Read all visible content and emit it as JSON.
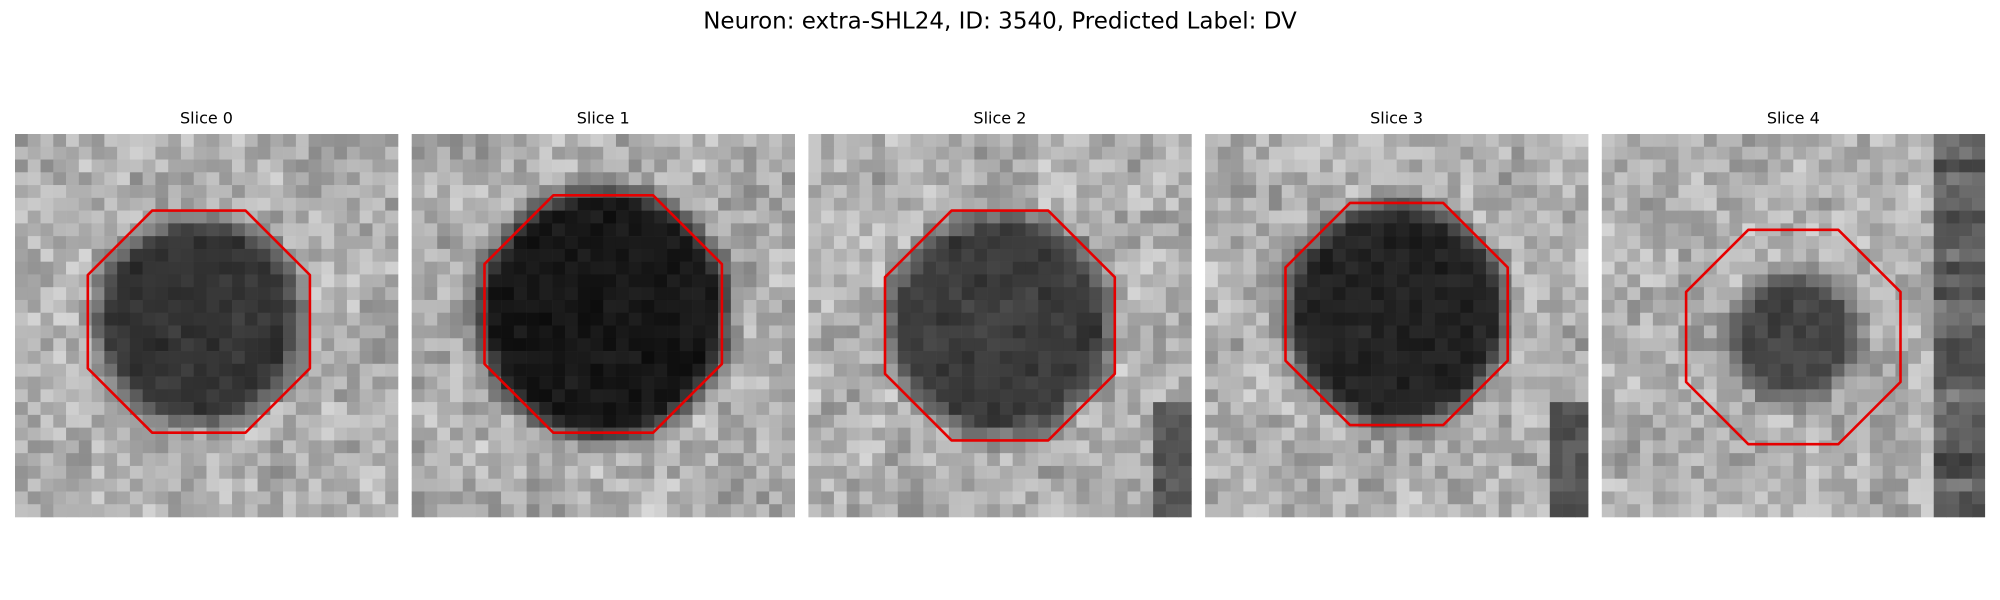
{
  "title": "Neuron: extra-SHL24, ID: 3540, Predicted Label: DV",
  "panels": [
    {
      "title": "Slice 0"
    },
    {
      "title": "Slice 1"
    },
    {
      "title": "Slice 2"
    },
    {
      "title": "Slice 3"
    },
    {
      "title": "Slice 4"
    }
  ]
}
